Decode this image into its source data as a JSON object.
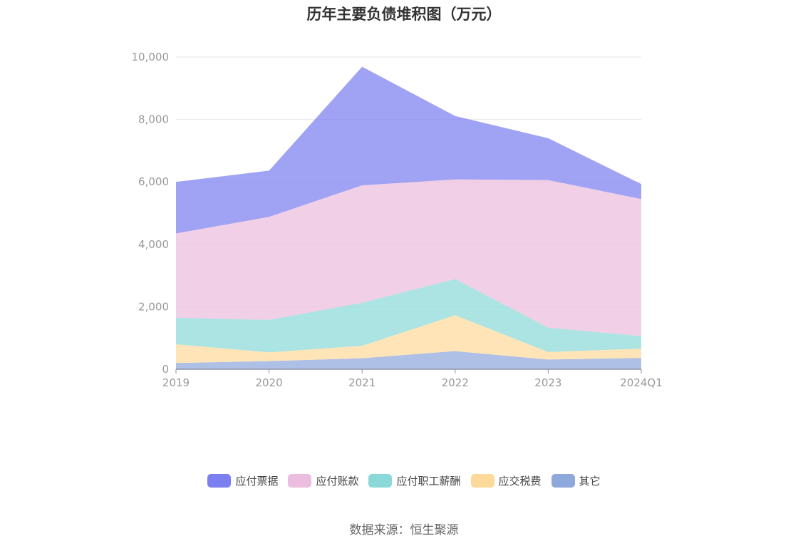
{
  "chart_data": {
    "type": "area",
    "stacked": true,
    "title": "历年主要负债堆积图（万元）",
    "categories": [
      "2019",
      "2020",
      "2021",
      "2022",
      "2023",
      "2024Q1"
    ],
    "ylim": [
      0,
      10000
    ],
    "yticks": [
      "0",
      "2,000",
      "4,000",
      "6,000",
      "8,000",
      "10,000"
    ],
    "grid": true,
    "legend_position": "bottom",
    "series": [
      {
        "name": "其它",
        "color": "#8fa8dc",
        "values": [
          200,
          260,
          350,
          580,
          310,
          360
        ]
      },
      {
        "name": "应交税费",
        "color": "#fdd99a",
        "values": [
          600,
          280,
          400,
          1150,
          240,
          300
        ]
      },
      {
        "name": "应付职工薪酬",
        "color": "#8ad9d8",
        "values": [
          850,
          1040,
          1380,
          1160,
          780,
          400
        ]
      },
      {
        "name": "应付账款",
        "color": "#ebbdde",
        "values": [
          2700,
          3300,
          3760,
          3190,
          4730,
          4390
        ]
      },
      {
        "name": "应付票据",
        "color": "#7b7ff0",
        "values": [
          1650,
          1480,
          3800,
          2030,
          1340,
          480
        ]
      }
    ],
    "legend_order": [
      "应付票据",
      "应付账款",
      "应付职工薪酬",
      "应交税费",
      "其它"
    ],
    "source": "数据来源：恒生聚源"
  }
}
